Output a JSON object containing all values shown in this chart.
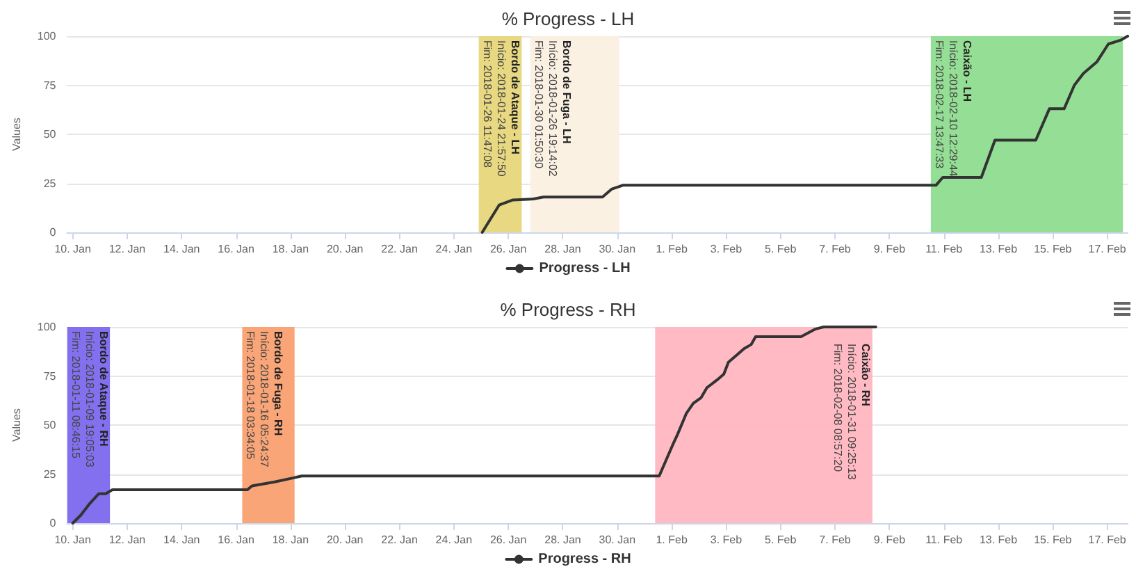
{
  "chart_data": [
    {
      "type": "line",
      "title": "% Progress - LH",
      "ylabel": "Values",
      "xlim": [
        "2018-01-09T19:00",
        "2018-02-17T18:00"
      ],
      "ylim": [
        0,
        100
      ],
      "yticks": [
        0,
        25,
        50,
        75,
        100
      ],
      "xticks": [
        {
          "value": "2018-01-10",
          "label": "10. Jan"
        },
        {
          "value": "2018-01-12",
          "label": "12. Jan"
        },
        {
          "value": "2018-01-14",
          "label": "14. Jan"
        },
        {
          "value": "2018-01-16",
          "label": "16. Jan"
        },
        {
          "value": "2018-01-18",
          "label": "18. Jan"
        },
        {
          "value": "2018-01-20",
          "label": "20. Jan"
        },
        {
          "value": "2018-01-22",
          "label": "22. Jan"
        },
        {
          "value": "2018-01-24",
          "label": "24. Jan"
        },
        {
          "value": "2018-01-26",
          "label": "26. Jan"
        },
        {
          "value": "2018-01-28",
          "label": "28. Jan"
        },
        {
          "value": "2018-01-30",
          "label": "30. Jan"
        },
        {
          "value": "2018-02-01",
          "label": "1. Feb"
        },
        {
          "value": "2018-02-03",
          "label": "3. Feb"
        },
        {
          "value": "2018-02-05",
          "label": "5. Feb"
        },
        {
          "value": "2018-02-07",
          "label": "7. Feb"
        },
        {
          "value": "2018-02-09",
          "label": "9. Feb"
        },
        {
          "value": "2018-02-11",
          "label": "11. Feb"
        },
        {
          "value": "2018-02-13",
          "label": "13. Feb"
        },
        {
          "value": "2018-02-15",
          "label": "15. Feb"
        },
        {
          "value": "2018-02-17",
          "label": "17. Feb"
        }
      ],
      "grid": "y",
      "legend": "bottom",
      "marker": "none",
      "line_style": "solid",
      "series": [
        {
          "name": "Progress - LH",
          "color": "#333333",
          "x": [
            "2018-01-25T01:00",
            "2018-01-25T16:00",
            "2018-01-26T04:00",
            "2018-01-26T22:00",
            "2018-01-27T07:00",
            "2018-01-29T11:00",
            "2018-01-29T19:00",
            "2018-01-30T05:00",
            "2018-02-10T17:00",
            "2018-02-10T23:00",
            "2018-02-12T09:00",
            "2018-02-12T21:00",
            "2018-02-14T09:00",
            "2018-02-14T21:00",
            "2018-02-15T10:00",
            "2018-02-15T19:00",
            "2018-02-16T03:00",
            "2018-02-16T15:00",
            "2018-02-17T01:00",
            "2018-02-17T12:00",
            "2018-02-17T18:00"
          ],
          "values": [
            0,
            14,
            16.5,
            17,
            18,
            18,
            22,
            24,
            24,
            28,
            28,
            47,
            47,
            63,
            63,
            75,
            81,
            87,
            96,
            98,
            100
          ]
        }
      ],
      "bands": [
        {
          "axis": "x",
          "from": "2018-01-24T21:57",
          "to": "2018-01-26T11:47",
          "label": "Bordo de Ataque - LH\nInício: 2018-01-24 21:57:50\nFim: 2018-01-26 11:47:08",
          "color": "#e6d67a"
        },
        {
          "axis": "x",
          "from": "2018-01-26T19:14",
          "to": "2018-01-30T01:50",
          "label": "Bordo de Fuga - LH\nInício: 2018-01-26 19:14:02\nFim: 2018-01-30 01:50:30",
          "color": "#faf0e1"
        },
        {
          "axis": "x",
          "from": "2018-02-10T12:29",
          "to": "2018-02-17T13:47",
          "label": "Caixão - LH\nInício: 2018-02-10 12:29:44\nFim: 2018-02-17 13:47:33",
          "color": "#8fdc8f"
        }
      ]
    },
    {
      "type": "line",
      "title": "% Progress - RH",
      "ylabel": "Values",
      "xlim": [
        "2018-01-09T19:00",
        "2018-02-17T18:00"
      ],
      "ylim": [
        0,
        100
      ],
      "yticks": [
        0,
        25,
        50,
        75,
        100
      ],
      "xticks": [
        {
          "value": "2018-01-10",
          "label": "10. Jan"
        },
        {
          "value": "2018-01-12",
          "label": "12. Jan"
        },
        {
          "value": "2018-01-14",
          "label": "14. Jan"
        },
        {
          "value": "2018-01-16",
          "label": "16. Jan"
        },
        {
          "value": "2018-01-18",
          "label": "18. Jan"
        },
        {
          "value": "2018-01-20",
          "label": "20. Jan"
        },
        {
          "value": "2018-01-22",
          "label": "22. Jan"
        },
        {
          "value": "2018-01-24",
          "label": "24. Jan"
        },
        {
          "value": "2018-01-26",
          "label": "26. Jan"
        },
        {
          "value": "2018-01-28",
          "label": "28. Jan"
        },
        {
          "value": "2018-01-30",
          "label": "30. Jan"
        },
        {
          "value": "2018-02-01",
          "label": "1. Feb"
        },
        {
          "value": "2018-02-03",
          "label": "3. Feb"
        },
        {
          "value": "2018-02-05",
          "label": "5. Feb"
        },
        {
          "value": "2018-02-07",
          "label": "7. Feb"
        },
        {
          "value": "2018-02-09",
          "label": "9. Feb"
        },
        {
          "value": "2018-02-11",
          "label": "11. Feb"
        },
        {
          "value": "2018-02-13",
          "label": "13. Feb"
        },
        {
          "value": "2018-02-15",
          "label": "15. Feb"
        },
        {
          "value": "2018-02-17",
          "label": "17. Feb"
        }
      ],
      "grid": "y",
      "legend": "bottom",
      "marker": "none",
      "line_style": "solid",
      "series": [
        {
          "name": "Progress - RH",
          "color": "#333333",
          "x": [
            "2018-01-10T00:00",
            "2018-01-10T07:00",
            "2018-01-10T15:00",
            "2018-01-10T23:00",
            "2018-01-11T05:00",
            "2018-01-11T11:00",
            "2018-01-16T10:00",
            "2018-01-16T14:00",
            "2018-01-17T10:00",
            "2018-01-18T02:00",
            "2018-01-18T10:00",
            "2018-01-31T13:00",
            "2018-01-31T19:00",
            "2018-02-01T01:00",
            "2018-02-01T05:00",
            "2018-02-01T13:00",
            "2018-02-01T19:00",
            "2018-02-02T02:00",
            "2018-02-02T07:00",
            "2018-02-02T16:00",
            "2018-02-02T22:00",
            "2018-02-03T02:00",
            "2018-02-03T10:00",
            "2018-02-03T16:00",
            "2018-02-03T22:00",
            "2018-02-04T02:00",
            "2018-02-05T18:00",
            "2018-02-06T07:00",
            "2018-02-06T14:00",
            "2018-02-08T12:00"
          ],
          "values": [
            0,
            4,
            10,
            15,
            15,
            17,
            17,
            19,
            21,
            23,
            24,
            24,
            32,
            40,
            45,
            56,
            61,
            64,
            69,
            73,
            76,
            82,
            86,
            89,
            91,
            95,
            95,
            99,
            100,
            100
          ]
        }
      ],
      "bands": [
        {
          "axis": "x",
          "from": "2018-01-09T19:05",
          "to": "2018-01-11T08:46",
          "label": "Bordo de Ataque - RH\nInício: 2018-01-09 19:05:03\nFim: 2018-01-11 08:46:15",
          "color": "#7b68ee"
        },
        {
          "axis": "x",
          "from": "2018-01-16T05:24",
          "to": "2018-01-18T03:34",
          "label": "Bordo de Fuga - RH\nInício: 2018-01-16 05:24:37\nFim: 2018-01-18 03:34:05",
          "color": "#f9a070"
        },
        {
          "axis": "x",
          "from": "2018-01-31T09:25",
          "to": "2018-02-08T08:57",
          "label": "Caixão - RH\nInício: 2018-01-31 09:25:13\nFim: 2018-02-08 08:57:20",
          "color": "#ffb6c1"
        }
      ]
    }
  ]
}
